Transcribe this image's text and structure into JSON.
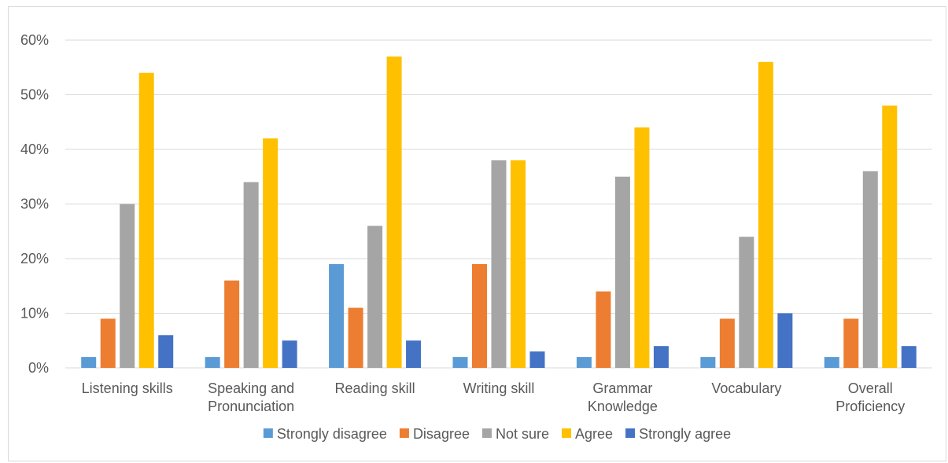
{
  "chart_data": {
    "type": "bar",
    "title": "",
    "xlabel": "",
    "ylabel": "",
    "ylim": [
      0,
      60
    ],
    "yticks": [
      "0%",
      "10%",
      "20%",
      "30%",
      "40%",
      "50%",
      "60%"
    ],
    "grid": true,
    "legend_position": "bottom",
    "categories": [
      [
        "Listening skills"
      ],
      [
        "Speaking and",
        "Pronunciation"
      ],
      [
        "Reading skill"
      ],
      [
        "Writing skill"
      ],
      [
        "Grammar",
        "Knowledge"
      ],
      [
        "Vocabulary"
      ],
      [
        "Overall",
        "Proficiency"
      ]
    ],
    "series": [
      {
        "name": "Strongly disagree",
        "color": "#5b9bd5",
        "values": [
          2,
          2,
          19,
          2,
          2,
          2,
          2
        ]
      },
      {
        "name": "Disagree",
        "color": "#ed7d31",
        "values": [
          9,
          16,
          11,
          19,
          14,
          9,
          9
        ]
      },
      {
        "name": "Not sure",
        "color": "#a5a5a5",
        "values": [
          30,
          34,
          26,
          38,
          35,
          24,
          36
        ]
      },
      {
        "name": "Agree",
        "color": "#ffc000",
        "values": [
          54,
          42,
          57,
          38,
          44,
          56,
          48
        ]
      },
      {
        "name": "Strongly agree",
        "color": "#4472c4",
        "values": [
          6,
          5,
          5,
          3,
          4,
          10,
          4
        ]
      }
    ]
  }
}
